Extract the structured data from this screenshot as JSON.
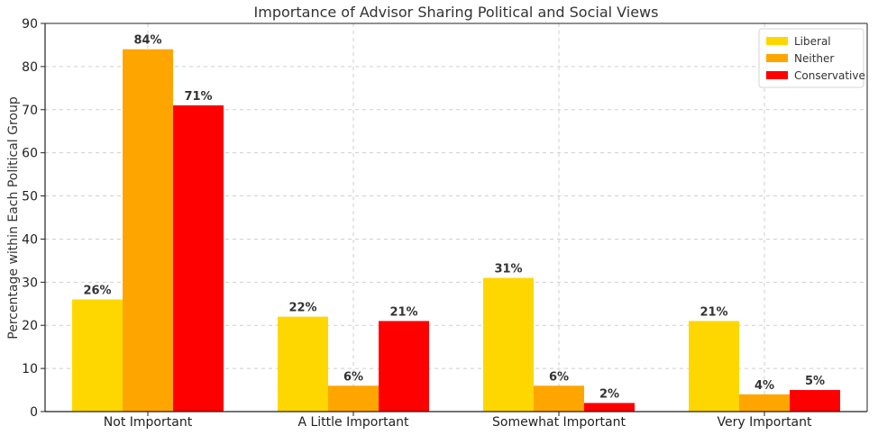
{
  "chart_data": {
    "type": "bar",
    "title": "Importance of Advisor Sharing Political and Social Views",
    "xlabel": "",
    "ylabel": "Percentage within Each Political Group",
    "categories": [
      "Not Important",
      "A Little Important",
      "Somewhat Important",
      "Very Important"
    ],
    "ylim": [
      0,
      90
    ],
    "yticks": [
      0,
      10,
      20,
      30,
      40,
      50,
      60,
      70,
      80,
      90
    ],
    "grid": true,
    "legend_position": "top-right",
    "series": [
      {
        "name": "Liberal",
        "color": "#FFD700",
        "values": [
          26,
          22,
          31,
          21
        ],
        "labels": [
          "26%",
          "22%",
          "31%",
          "21%"
        ]
      },
      {
        "name": "Neither",
        "color": "#FFA500",
        "values": [
          84,
          6,
          6,
          4
        ],
        "labels": [
          "84%",
          "6%",
          "6%",
          "4%"
        ]
      },
      {
        "name": "Conservative",
        "color": "#FF0000",
        "values": [
          71,
          21,
          2,
          5
        ],
        "labels": [
          "71%",
          "21%",
          "2%",
          "5%"
        ]
      }
    ]
  }
}
